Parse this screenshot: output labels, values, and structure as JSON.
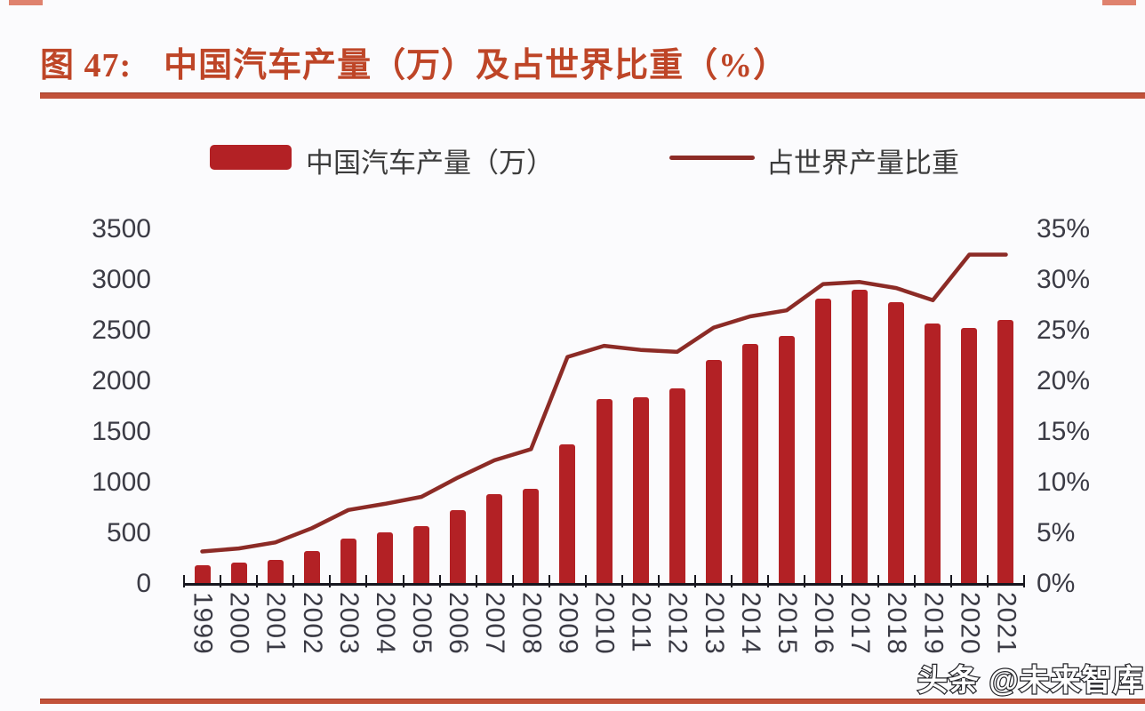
{
  "page": {
    "title_prefix": "图 47:",
    "title": "中国汽车产量（万）及占世界比重（%）",
    "watermark": "头条 @未来智库",
    "colors": {
      "title": "#be4527",
      "accent_rule": "#c2523a",
      "bar": "#b32125",
      "line": "#8c2b26",
      "axis_text": "#3b3b45",
      "axis_line": "#17171f"
    }
  },
  "legend": {
    "bar_label": "中国汽车产量（万）",
    "line_label": "占世界产量比重"
  },
  "chart_data": {
    "type": "bar",
    "subtype": "bar+line dual axis",
    "title": "中国汽车产量（万）及占世界比重（%）",
    "categories": [
      "1999",
      "2000",
      "2001",
      "2002",
      "2003",
      "2004",
      "2005",
      "2006",
      "2007",
      "2008",
      "2009",
      "2010",
      "2011",
      "2012",
      "2013",
      "2014",
      "2015",
      "2016",
      "2017",
      "2018",
      "2019",
      "2020",
      "2021"
    ],
    "series": [
      {
        "name": "中国汽车产量（万）",
        "type": "bar",
        "axis": "left",
        "values": [
          184,
          207,
          234,
          325,
          444,
          507,
          571,
          728,
          888,
          935,
          1379,
          1826,
          1842,
          1927,
          2212,
          2372,
          2450,
          2812,
          2902,
          2781,
          2572,
          2523,
          2608
        ]
      },
      {
        "name": "占世界产量比重",
        "type": "line",
        "axis": "right",
        "values": [
          3.2,
          3.5,
          4.1,
          5.5,
          7.3,
          7.9,
          8.6,
          10.5,
          12.2,
          13.3,
          22.4,
          23.5,
          23.1,
          22.9,
          25.3,
          26.4,
          27.0,
          29.6,
          29.8,
          29.2,
          28.0,
          32.5,
          32.5
        ]
      }
    ],
    "left_axis": {
      "min": 0,
      "max": 3500,
      "step": 500,
      "tick_labels": [
        "0",
        "500",
        "1000",
        "1500",
        "2000",
        "2500",
        "3000",
        "3500"
      ]
    },
    "right_axis": {
      "min": 0,
      "max": 35,
      "step": 5,
      "tick_labels": [
        "0%",
        "5%",
        "10%",
        "15%",
        "20%",
        "25%",
        "30%",
        "35%"
      ]
    },
    "grid": false,
    "legend_position": "top"
  }
}
